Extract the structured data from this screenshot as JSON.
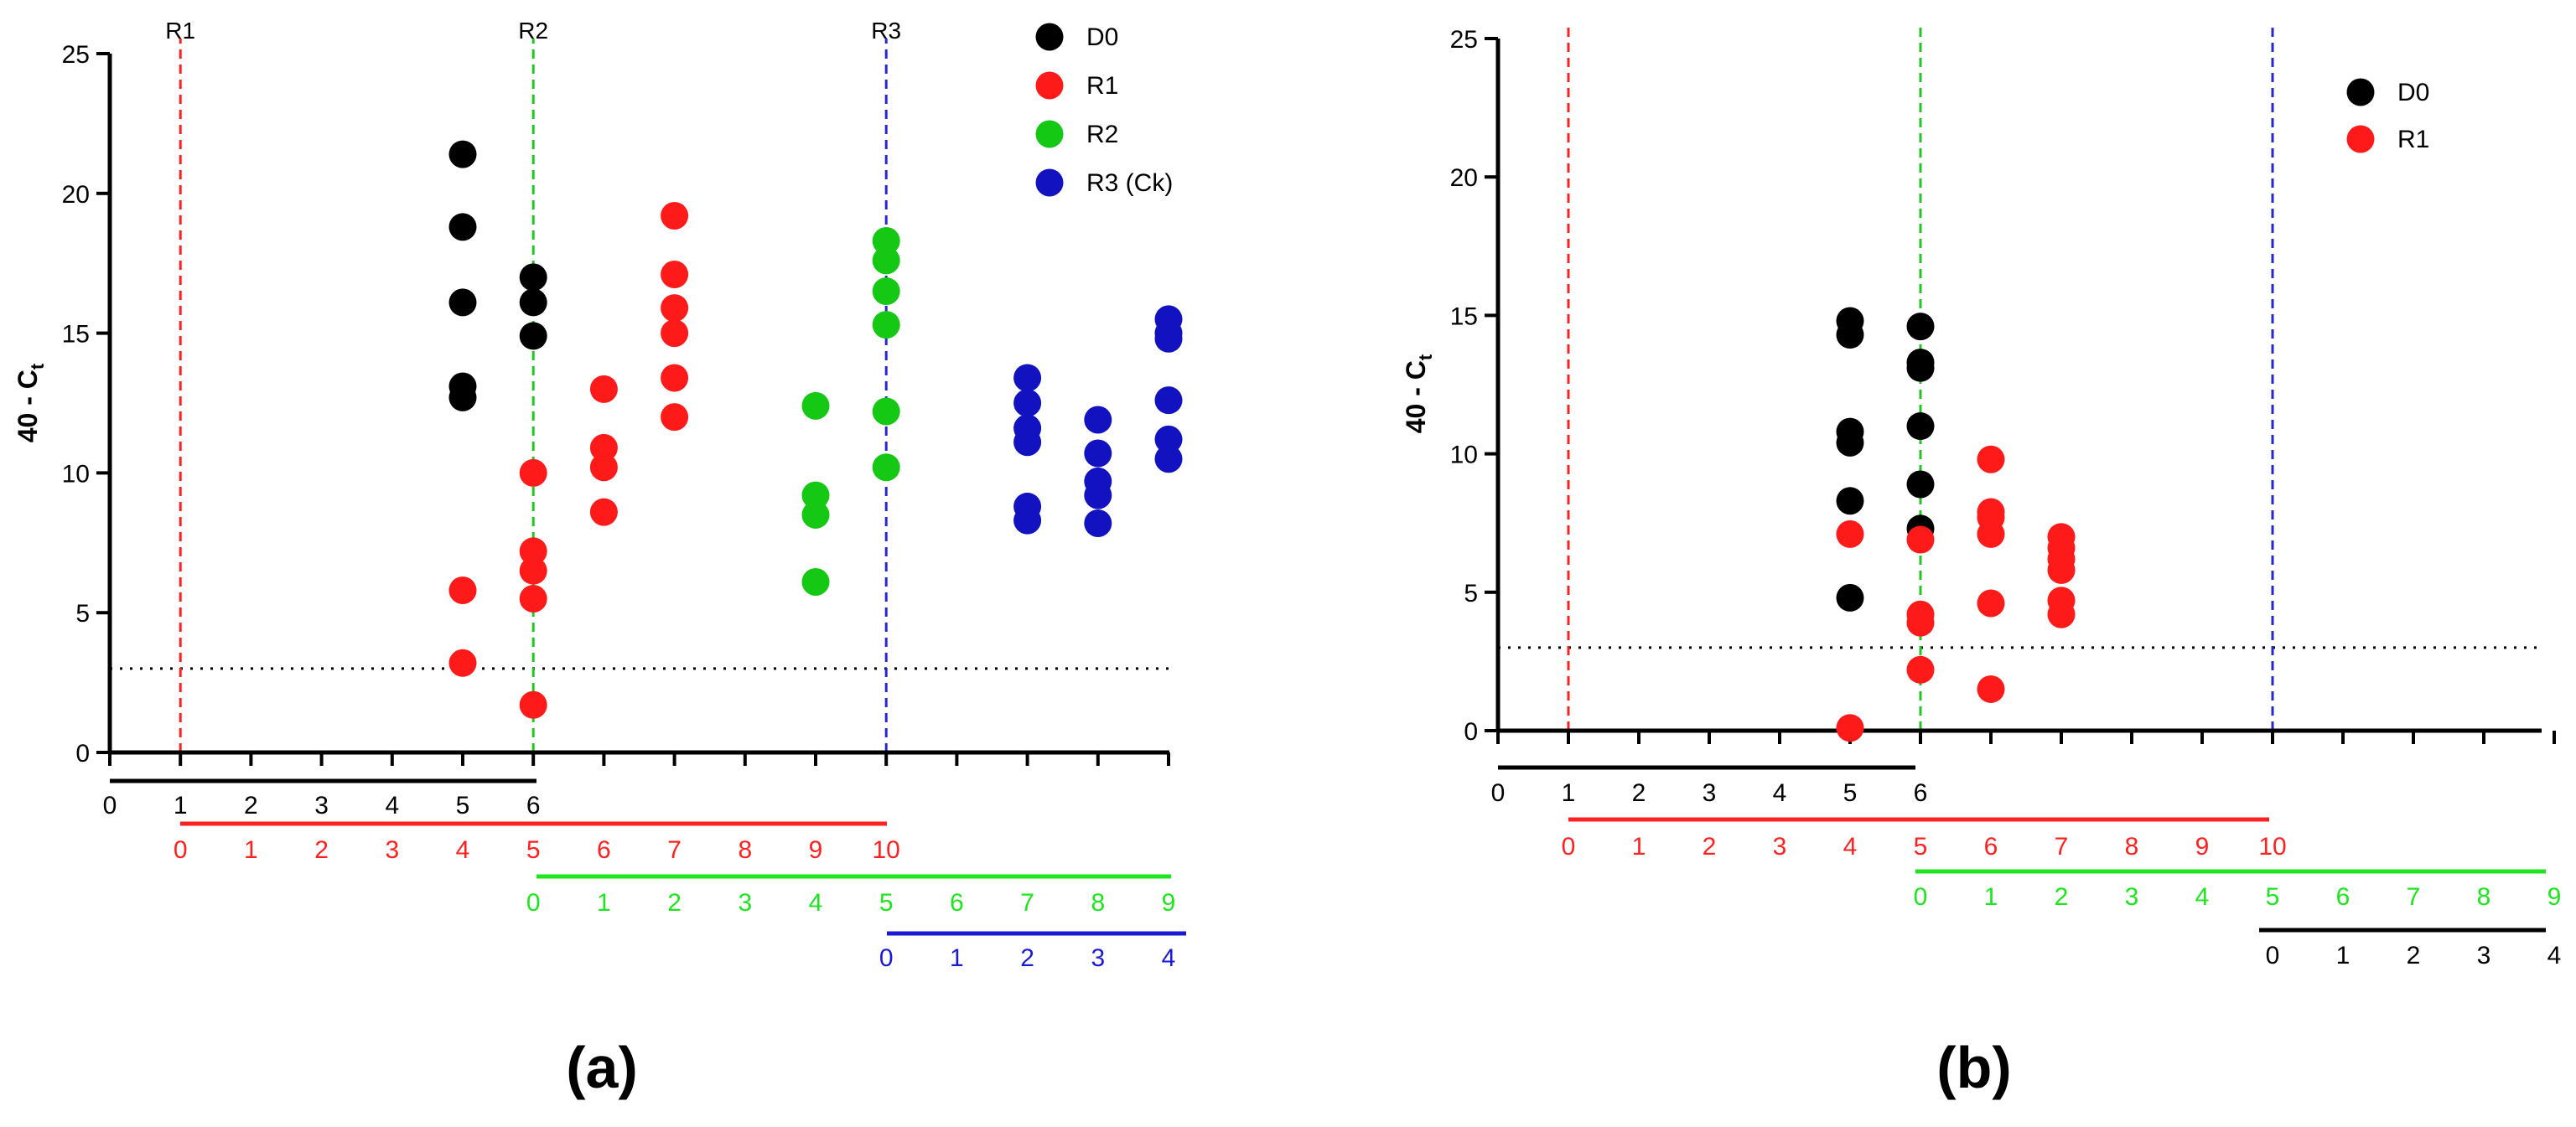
{
  "chart_data": [
    {
      "type": "scatter",
      "panel_label": "a",
      "ylabel": "40 - C",
      "ylabel_sub": "t",
      "ylim": [
        0,
        25
      ],
      "yticks": [
        "0",
        "5",
        "10",
        "15",
        "20",
        "25"
      ],
      "xlim": [
        0,
        15
      ],
      "threshold": 3,
      "vlines": [
        {
          "x": 1,
          "label": "R1",
          "color": "#ff2020"
        },
        {
          "x": 6,
          "label": "R2",
          "color": "#1ec81e"
        },
        {
          "x": 11,
          "label": "R3",
          "color": "#2626d9"
        }
      ],
      "series": [
        {
          "name": "D0",
          "color": "#000000",
          "points": [
            [
              5,
              21.4
            ],
            [
              5,
              18.8
            ],
            [
              5,
              16.1
            ],
            [
              5,
              13.1
            ],
            [
              5,
              12.7
            ],
            [
              6,
              17.0
            ],
            [
              6,
              16.1
            ],
            [
              6,
              14.9
            ]
          ]
        },
        {
          "name": "R1",
          "color": "#ff1a1a",
          "points": [
            [
              5,
              5.8
            ],
            [
              5,
              3.2
            ],
            [
              6,
              10.0
            ],
            [
              6,
              7.2
            ],
            [
              6,
              6.5
            ],
            [
              6,
              5.5
            ],
            [
              6,
              1.7
            ],
            [
              7,
              13.0
            ],
            [
              7,
              10.9
            ],
            [
              7,
              10.2
            ],
            [
              7,
              8.6
            ],
            [
              8,
              19.2
            ],
            [
              8,
              17.1
            ],
            [
              8,
              15.9
            ],
            [
              8,
              15.0
            ],
            [
              8,
              13.4
            ],
            [
              8,
              12.0
            ]
          ]
        },
        {
          "name": "R2",
          "color": "#14c814",
          "points": [
            [
              10,
              12.4
            ],
            [
              10,
              9.2
            ],
            [
              10,
              8.5
            ],
            [
              10,
              6.1
            ],
            [
              11,
              18.3
            ],
            [
              11,
              17.6
            ],
            [
              11,
              16.5
            ],
            [
              11,
              15.3
            ],
            [
              11,
              12.2
            ],
            [
              11,
              10.2
            ]
          ]
        },
        {
          "name": "R3 (Ck)",
          "color": "#1212c0",
          "points": [
            [
              13,
              13.4
            ],
            [
              13,
              12.5
            ],
            [
              13,
              11.6
            ],
            [
              13,
              11.1
            ],
            [
              13,
              8.8
            ],
            [
              13,
              8.3
            ],
            [
              14,
              11.9
            ],
            [
              14,
              10.7
            ],
            [
              14,
              9.7
            ],
            [
              14,
              9.2
            ],
            [
              14,
              8.2
            ],
            [
              15,
              15.5
            ],
            [
              15,
              15.0
            ],
            [
              15,
              14.8
            ],
            [
              15,
              12.6
            ],
            [
              15,
              11.2
            ],
            [
              15,
              10.5
            ]
          ]
        }
      ],
      "scales": [
        {
          "color": "#000000",
          "start": 0,
          "labels": [
            "0",
            "1",
            "2",
            "3",
            "4",
            "5",
            "6"
          ]
        },
        {
          "color": "#ff2020",
          "start": 1,
          "labels": [
            "0",
            "1",
            "2",
            "3",
            "4",
            "5",
            "6",
            "7",
            "8",
            "9",
            "10"
          ]
        },
        {
          "color": "#1ee61e",
          "start": 6,
          "labels": [
            "0",
            "1",
            "2",
            "3",
            "4",
            "5",
            "6",
            "7",
            "8",
            "9"
          ]
        },
        {
          "color": "#1a1ad6",
          "start": 11,
          "labels": [
            "0",
            "1",
            "2",
            "3",
            "4"
          ]
        }
      ]
    },
    {
      "type": "scatter",
      "panel_label": "b",
      "ylabel": "40 - C",
      "ylabel_sub": "t",
      "ylim": [
        0,
        25
      ],
      "yticks": [
        "0",
        "5",
        "10",
        "15",
        "20",
        "25"
      ],
      "xlim": [
        0,
        15
      ],
      "threshold": 3,
      "vlines": [
        {
          "x": 1,
          "label": "",
          "color": "#ff2020"
        },
        {
          "x": 6,
          "label": "",
          "color": "#1ec81e"
        },
        {
          "x": 11,
          "label": "",
          "color": "#2626d9"
        }
      ],
      "series": [
        {
          "name": "D0",
          "color": "#000000",
          "points": [
            [
              5,
              14.8
            ],
            [
              5,
              14.3
            ],
            [
              5,
              10.8
            ],
            [
              5,
              10.4
            ],
            [
              5,
              8.3
            ],
            [
              5,
              4.8
            ],
            [
              6,
              14.6
            ],
            [
              6,
              13.3
            ],
            [
              6,
              13.1
            ],
            [
              6,
              11.0
            ],
            [
              6,
              8.9
            ],
            [
              6,
              7.3
            ]
          ]
        },
        {
          "name": "R1",
          "color": "#ff1a1a",
          "points": [
            [
              5,
              7.1
            ],
            [
              5,
              0.1
            ],
            [
              6,
              6.9
            ],
            [
              6,
              4.2
            ],
            [
              6,
              3.9
            ],
            [
              6,
              2.2
            ],
            [
              7,
              9.8
            ],
            [
              7,
              7.9
            ],
            [
              7,
              7.7
            ],
            [
              7,
              7.1
            ],
            [
              7,
              4.6
            ],
            [
              7,
              1.5
            ],
            [
              8,
              7.0
            ],
            [
              8,
              6.6
            ],
            [
              8,
              6.2
            ],
            [
              8,
              5.8
            ],
            [
              8,
              4.7
            ],
            [
              8,
              4.2
            ]
          ]
        }
      ],
      "scales": [
        {
          "color": "#000000",
          "start": 0,
          "labels": [
            "0",
            "1",
            "2",
            "3",
            "4",
            "5",
            "6"
          ]
        },
        {
          "color": "#ff2020",
          "start": 1,
          "labels": [
            "0",
            "1",
            "2",
            "3",
            "4",
            "5",
            "6",
            "7",
            "8",
            "9",
            "10"
          ]
        },
        {
          "color": "#1ee61e",
          "start": 6,
          "labels": [
            "0",
            "1",
            "2",
            "3",
            "4",
            "5",
            "6",
            "7",
            "8",
            "9"
          ]
        },
        {
          "color": "#000000",
          "start": 11,
          "labels": [
            "0",
            "1",
            "2",
            "3",
            "4"
          ]
        }
      ]
    }
  ]
}
